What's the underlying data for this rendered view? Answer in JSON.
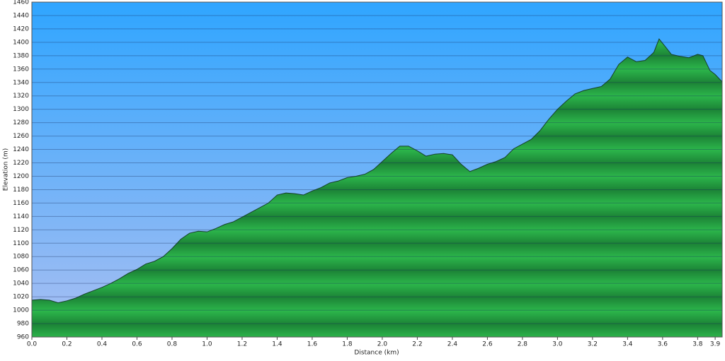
{
  "chart_data": {
    "type": "area",
    "xlabel": "Distance   (km)",
    "ylabel": "Elevation (m)",
    "x": [
      0.0,
      0.05,
      0.1,
      0.15,
      0.2,
      0.25,
      0.3,
      0.35,
      0.4,
      0.45,
      0.5,
      0.55,
      0.6,
      0.65,
      0.7,
      0.75,
      0.8,
      0.85,
      0.9,
      0.95,
      1.0,
      1.05,
      1.1,
      1.15,
      1.2,
      1.25,
      1.3,
      1.35,
      1.4,
      1.45,
      1.5,
      1.55,
      1.6,
      1.65,
      1.7,
      1.75,
      1.8,
      1.85,
      1.9,
      1.95,
      2.0,
      2.05,
      2.1,
      2.15,
      2.2,
      2.25,
      2.3,
      2.35,
      2.4,
      2.45,
      2.5,
      2.55,
      2.6,
      2.65,
      2.7,
      2.75,
      2.8,
      2.85,
      2.9,
      2.95,
      3.0,
      3.05,
      3.1,
      3.15,
      3.2,
      3.25,
      3.3,
      3.35,
      3.4,
      3.45,
      3.5,
      3.55,
      3.58,
      3.62,
      3.65,
      3.7,
      3.75,
      3.8,
      3.83,
      3.87,
      3.9,
      3.94
    ],
    "values": [
      1015,
      1016,
      1015,
      1011,
      1014,
      1018,
      1024,
      1029,
      1034,
      1040,
      1047,
      1055,
      1061,
      1069,
      1073,
      1080,
      1092,
      1106,
      1115,
      1118,
      1117,
      1122,
      1128,
      1132,
      1139,
      1146,
      1153,
      1160,
      1172,
      1175,
      1174,
      1172,
      1178,
      1183,
      1190,
      1193,
      1198,
      1200,
      1203,
      1210,
      1222,
      1234,
      1245,
      1245,
      1238,
      1230,
      1233,
      1234,
      1232,
      1218,
      1207,
      1212,
      1218,
      1222,
      1228,
      1241,
      1248,
      1255,
      1268,
      1285,
      1300,
      1312,
      1323,
      1328,
      1331,
      1334,
      1345,
      1367,
      1378,
      1371,
      1373,
      1385,
      1405,
      1392,
      1382,
      1379,
      1377,
      1382,
      1380,
      1358,
      1352,
      1341
    ],
    "color": "#26a847",
    "xlim": [
      0,
      3.94
    ],
    "ylim": [
      960,
      1460
    ],
    "xticks": [
      {
        "value": 0,
        "label": "0.0"
      },
      0.2,
      0.4,
      0.6,
      0.8,
      {
        "value": 1,
        "label": "1.0"
      },
      1.2,
      1.4,
      1.6,
      1.8,
      {
        "value": 2,
        "label": "2.0"
      },
      2.2,
      2.4,
      2.6,
      2.8,
      {
        "value": 3,
        "label": "3.0"
      },
      3.2,
      3.4,
      3.6,
      3.8,
      3.9
    ],
    "yticks": [
      960,
      980,
      1000,
      1020,
      1040,
      1060,
      1080,
      1100,
      1120,
      1140,
      1160,
      1180,
      1200,
      1220,
      1240,
      1260,
      1280,
      1300,
      1320,
      1340,
      1360,
      1380,
      1400,
      1420,
      1440,
      1460
    ],
    "grid": true
  }
}
